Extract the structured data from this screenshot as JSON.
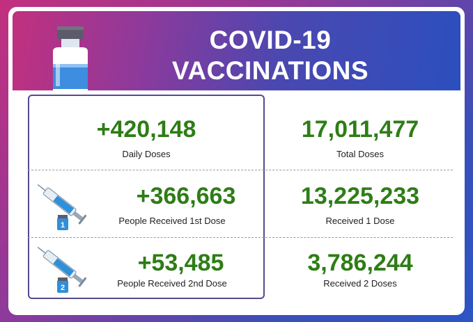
{
  "header": {
    "title_line1": "COVID-19",
    "title_line2": "VACCINATIONS"
  },
  "icons": {
    "banner": "vaccine-bottle-icon",
    "dose1": "syringe-dose-1-icon",
    "dose2": "syringe-dose-2-icon"
  },
  "stats": {
    "daily_doses": {
      "value": "+420,148",
      "label": "Daily Doses"
    },
    "total_doses": {
      "value": "17,011,477",
      "label": "Total Doses"
    },
    "first_dose_today": {
      "value": "+366,663",
      "label": "People Received 1st Dose"
    },
    "received_1_dose": {
      "value": "13,225,233",
      "label": "Received 1 Dose"
    },
    "second_dose_today": {
      "value": "+53,485",
      "label": "People Received 2nd Dose"
    },
    "received_2_doses": {
      "value": "3,786,244",
      "label": "Received 2 Doses"
    }
  },
  "vial_numbers": {
    "dose1": "1",
    "dose2": "2"
  },
  "colors": {
    "value_green": "#2e7d16",
    "panel_border": "#544a8e",
    "banner_blue": "#2b4fbe",
    "banner_pink": "#c2307e"
  }
}
